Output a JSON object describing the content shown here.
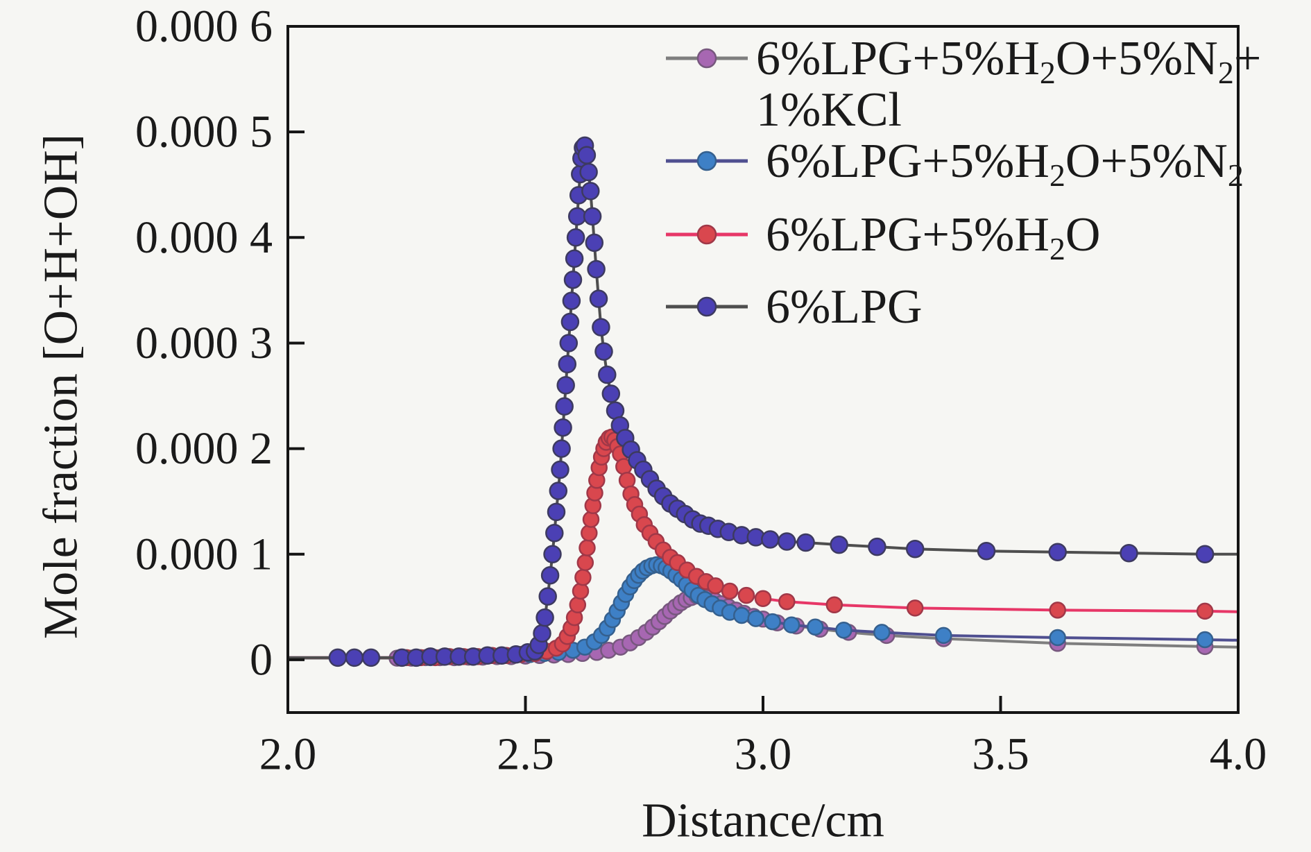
{
  "figure": {
    "background": "#f6f6f3",
    "axis_color": "#141414"
  },
  "chart_data": {
    "type": "line",
    "title": "",
    "xlabel": "Distance/cm",
    "ylabel": "Mole fraction [O+H+OH]",
    "xlim": [
      2.0,
      4.0
    ],
    "ylim": [
      -5e-05,
      0.0006
    ],
    "grid": false,
    "legend_position": "top-right-inside",
    "x_ticks": [
      {
        "value": 2.0,
        "label": "2.0"
      },
      {
        "value": 2.5,
        "label": "2.5"
      },
      {
        "value": 3.0,
        "label": "3.0"
      },
      {
        "value": 3.5,
        "label": "3.5"
      },
      {
        "value": 4.0,
        "label": "4.0"
      }
    ],
    "y_ticks": [
      {
        "value": 0,
        "label": "0"
      },
      {
        "value": 0.0001,
        "label": "0.000 1"
      },
      {
        "value": 0.0002,
        "label": "0.000 2"
      },
      {
        "value": 0.0003,
        "label": "0.000 3"
      },
      {
        "value": 0.0004,
        "label": "0.000 4"
      },
      {
        "value": 0.0005,
        "label": "0.000 5"
      },
      {
        "value": 0.0006,
        "label": "0.000 6"
      }
    ],
    "series": [
      {
        "id": "lpg-h2o-n2-kcl",
        "label_text": "6%LPG+5%H2O+5%N2+1%KCl",
        "label_segments": [
          {
            "t": "6%LPG+5%H"
          },
          {
            "t": "2",
            "sub": true
          },
          {
            "t": "O+5%N"
          },
          {
            "t": "2",
            "sub": true
          },
          {
            "t": "+"
          }
        ],
        "label_line2_segments": [
          {
            "t": "1%KCl"
          }
        ],
        "line_color": "#7e7e7e",
        "marker_color": "#a767b2",
        "marker_edge": "#77587e",
        "marker_radius": 11,
        "peak": {
          "x": 2.86,
          "y": 6.05e-05
        },
        "line_prefix": [
          2.0,
          1.5e-06
        ],
        "line_suffix": [
          4.0,
          1.2e-05
        ],
        "points": [
          [
            2.23,
            1.5e-06
          ],
          [
            2.26,
            1.5e-06
          ],
          [
            2.29,
            2e-06
          ],
          [
            2.32,
            2e-06
          ],
          [
            2.35,
            2e-06
          ],
          [
            2.38,
            2.5e-06
          ],
          [
            2.41,
            2.5e-06
          ],
          [
            2.44,
            3e-06
          ],
          [
            2.47,
            3e-06
          ],
          [
            2.5,
            3.5e-06
          ],
          [
            2.53,
            4e-06
          ],
          [
            2.56,
            4.5e-06
          ],
          [
            2.59,
            5e-06
          ],
          [
            2.62,
            6e-06
          ],
          [
            2.65,
            7e-06
          ],
          [
            2.675,
            9e-06
          ],
          [
            2.7,
            1.2e-05
          ],
          [
            2.72,
            1.6e-05
          ],
          [
            2.738,
            2.1e-05
          ],
          [
            2.754,
            2.6e-05
          ],
          [
            2.768,
            3.1e-05
          ],
          [
            2.781,
            3.6e-05
          ],
          [
            2.793,
            4.1e-05
          ],
          [
            2.805,
            4.6e-05
          ],
          [
            2.816,
            5e-05
          ],
          [
            2.827,
            5.4e-05
          ],
          [
            2.838,
            5.7e-05
          ],
          [
            2.849,
            5.9e-05
          ],
          [
            2.861,
            6.05e-05
          ],
          [
            2.873,
            6e-05
          ],
          [
            2.885,
            5.85e-05
          ],
          [
            2.898,
            5.6e-05
          ],
          [
            2.912,
            5.3e-05
          ],
          [
            2.927,
            5e-05
          ],
          [
            2.943,
            4.7e-05
          ],
          [
            2.96,
            4.4e-05
          ],
          [
            2.98,
            4.1e-05
          ],
          [
            3.0,
            3.85e-05
          ],
          [
            3.03,
            3.5e-05
          ],
          [
            3.07,
            3.2e-05
          ],
          [
            3.12,
            2.9e-05
          ],
          [
            3.18,
            2.6e-05
          ],
          [
            3.26,
            2.3e-05
          ],
          [
            3.38,
            2e-05
          ],
          [
            3.62,
            1.55e-05
          ],
          [
            3.93,
            1.25e-05
          ]
        ]
      },
      {
        "id": "lpg-h2o-n2",
        "label_text": "6%LPG+5%H2O+5%N2",
        "label_segments": [
          {
            "t": "6%LPG+5%H"
          },
          {
            "t": "2",
            "sub": true
          },
          {
            "t": "O+5%N"
          },
          {
            "t": "2",
            "sub": true
          }
        ],
        "line_color": "#4f4f90",
        "marker_color": "#3e80c6",
        "marker_edge": "#35608e",
        "marker_radius": 11,
        "peak": {
          "x": 2.776,
          "y": 9e-05
        },
        "line_prefix": [
          2.0,
          2e-06
        ],
        "line_suffix": [
          4.0,
          1.85e-05
        ],
        "points": [
          [
            2.24,
            2e-06
          ],
          [
            2.27,
            2e-06
          ],
          [
            2.3,
            2e-06
          ],
          [
            2.33,
            3e-06
          ],
          [
            2.36,
            3e-06
          ],
          [
            2.39,
            3e-06
          ],
          [
            2.42,
            4e-06
          ],
          [
            2.45,
            4e-06
          ],
          [
            2.48,
            5e-06
          ],
          [
            2.51,
            5e-06
          ],
          [
            2.54,
            6e-06
          ],
          [
            2.57,
            7e-06
          ],
          [
            2.6,
            9e-06
          ],
          [
            2.625,
            1.2e-05
          ],
          [
            2.645,
            1.7e-05
          ],
          [
            2.66,
            2.3e-05
          ],
          [
            2.672,
            3e-05
          ],
          [
            2.683,
            3.8e-05
          ],
          [
            2.693,
            4.6e-05
          ],
          [
            2.702,
            5.4e-05
          ],
          [
            2.711,
            6.2e-05
          ],
          [
            2.72,
            6.9e-05
          ],
          [
            2.729,
            7.5e-05
          ],
          [
            2.738,
            8e-05
          ],
          [
            2.747,
            8.4e-05
          ],
          [
            2.756,
            8.7e-05
          ],
          [
            2.766,
            8.9e-05
          ],
          [
            2.776,
            9e-05
          ],
          [
            2.786,
            8.9e-05
          ],
          [
            2.796,
            8.7e-05
          ],
          [
            2.806,
            8.4e-05
          ],
          [
            2.817,
            8e-05
          ],
          [
            2.828,
            7.6e-05
          ],
          [
            2.839,
            7.1e-05
          ],
          [
            2.851,
            6.6e-05
          ],
          [
            2.864,
            6.1e-05
          ],
          [
            2.878,
            5.7e-05
          ],
          [
            2.893,
            5.3e-05
          ],
          [
            2.91,
            4.9e-05
          ],
          [
            2.93,
            4.5e-05
          ],
          [
            2.955,
            4.2e-05
          ],
          [
            2.985,
            3.9e-05
          ],
          [
            3.02,
            3.6e-05
          ],
          [
            3.06,
            3.3e-05
          ],
          [
            3.11,
            3.1e-05
          ],
          [
            3.17,
            2.8e-05
          ],
          [
            3.25,
            2.6e-05
          ],
          [
            3.38,
            2.3e-05
          ],
          [
            3.62,
            2.1e-05
          ],
          [
            3.93,
            1.9e-05
          ]
        ]
      },
      {
        "id": "lpg-h2o",
        "label_text": "6%LPG+5%H2O",
        "label_segments": [
          {
            "t": "6%LPG+5%H"
          },
          {
            "t": "2",
            "sub": true
          },
          {
            "t": "O"
          }
        ],
        "line_color": "#e73767",
        "marker_color": "#d9474e",
        "marker_edge": "#a03848",
        "marker_radius": 11,
        "peak": {
          "x": 2.682,
          "y": 0.000211
        },
        "line_prefix": [
          2.0,
          2e-06
        ],
        "line_suffix": [
          4.0,
          4.55e-05
        ],
        "points": [
          [
            2.25,
            2e-06
          ],
          [
            2.28,
            2e-06
          ],
          [
            2.31,
            2e-06
          ],
          [
            2.34,
            3e-06
          ],
          [
            2.37,
            3e-06
          ],
          [
            2.4,
            3e-06
          ],
          [
            2.43,
            4e-06
          ],
          [
            2.46,
            4e-06
          ],
          [
            2.49,
            5e-06
          ],
          [
            2.52,
            6e-06
          ],
          [
            2.545,
            8e-06
          ],
          [
            2.565,
            1.1e-05
          ],
          [
            2.578,
            1.5e-05
          ],
          [
            2.588,
            2.2e-05
          ],
          [
            2.596,
            3e-05
          ],
          [
            2.603,
            4e-05
          ],
          [
            2.61,
            5.2e-05
          ],
          [
            2.616,
            6.5e-05
          ],
          [
            2.621,
            7.8e-05
          ],
          [
            2.626,
            9.2e-05
          ],
          [
            2.63,
            0.000106
          ],
          [
            2.634,
            0.00012
          ],
          [
            2.638,
            0.000133
          ],
          [
            2.642,
            0.000146
          ],
          [
            2.646,
            0.000158
          ],
          [
            2.65,
            0.00017
          ],
          [
            2.655,
            0.000182
          ],
          [
            2.66,
            0.000192
          ],
          [
            2.665,
            0.0002
          ],
          [
            2.67,
            0.000206
          ],
          [
            2.676,
            0.00021
          ],
          [
            2.682,
            0.000211
          ],
          [
            2.688,
            0.000208
          ],
          [
            2.694,
            0.000202
          ],
          [
            2.7,
            0.000195
          ],
          [
            2.707,
            0.000183
          ],
          [
            2.714,
            0.00017
          ],
          [
            2.722,
            0.000157
          ],
          [
            2.73,
            0.000147
          ],
          [
            2.74,
            0.000138
          ],
          [
            2.75,
            0.000128
          ],
          [
            2.762,
            0.00012
          ],
          [
            2.775,
            0.000112
          ],
          [
            2.79,
            0.000104
          ],
          [
            2.805,
            9.7e-05
          ],
          [
            2.82,
            9.2e-05
          ],
          [
            2.84,
            8.5e-05
          ],
          [
            2.86,
            7.9e-05
          ],
          [
            2.88,
            7.4e-05
          ],
          [
            2.9,
            7e-05
          ],
          [
            2.93,
            6.5e-05
          ],
          [
            2.965,
            6.1e-05
          ],
          [
            3.0,
            5.8e-05
          ],
          [
            3.05,
            5.5e-05
          ],
          [
            3.15,
            5.2e-05
          ],
          [
            3.32,
            4.9e-05
          ],
          [
            3.62,
            4.7e-05
          ],
          [
            3.93,
            4.6e-05
          ]
        ]
      },
      {
        "id": "lpg",
        "label_text": "6%LPG",
        "label_segments": [
          {
            "t": "6%LPG"
          }
        ],
        "line_color": "#4e4e4e",
        "marker_color": "#4b40b4",
        "marker_edge": "#3d3a60",
        "marker_radius": 12,
        "peak": {
          "x": 2.625,
          "y": 0.000487
        },
        "line_prefix": [
          2.0,
          2e-06
        ],
        "line_suffix": [
          4.0,
          0.0001
        ],
        "points": [
          [
            2.105,
            2e-06
          ],
          [
            2.14,
            2e-06
          ],
          [
            2.175,
            2e-06
          ],
          [
            2.24,
            2e-06
          ],
          [
            2.27,
            2e-06
          ],
          [
            2.3,
            3e-06
          ],
          [
            2.33,
            3e-06
          ],
          [
            2.36,
            3e-06
          ],
          [
            2.39,
            3e-06
          ],
          [
            2.42,
            4e-06
          ],
          [
            2.45,
            4e-06
          ],
          [
            2.48,
            5e-06
          ],
          [
            2.505,
            7e-06
          ],
          [
            2.52,
            8e-06
          ],
          [
            2.528,
            1.4e-05
          ],
          [
            2.535,
            2.5e-05
          ],
          [
            2.541,
            4e-05
          ],
          [
            2.547,
            6e-05
          ],
          [
            2.552,
            8e-05
          ],
          [
            2.557,
            0.0001
          ],
          [
            2.561,
            0.00012
          ],
          [
            2.565,
            0.00014
          ],
          [
            2.569,
            0.00016
          ],
          [
            2.573,
            0.00018
          ],
          [
            2.576,
            0.0002
          ],
          [
            2.579,
            0.00022
          ],
          [
            2.582,
            0.00024
          ],
          [
            2.585,
            0.00026
          ],
          [
            2.588,
            0.00028
          ],
          [
            2.591,
            0.0003
          ],
          [
            2.594,
            0.00032
          ],
          [
            2.597,
            0.00034
          ],
          [
            2.6,
            0.00036
          ],
          [
            2.603,
            0.00038
          ],
          [
            2.606,
            0.0004
          ],
          [
            2.609,
            0.00042
          ],
          [
            2.612,
            0.00044
          ],
          [
            2.615,
            0.00046
          ],
          [
            2.618,
            0.000475
          ],
          [
            2.621,
            0.000485
          ],
          [
            2.625,
            0.000487
          ],
          [
            2.629,
            0.000478
          ],
          [
            2.633,
            0.000462
          ],
          [
            2.637,
            0.000444
          ],
          [
            2.641,
            0.00042
          ],
          [
            2.645,
            0.000395
          ],
          [
            2.649,
            0.00037
          ],
          [
            2.654,
            0.000342
          ],
          [
            2.659,
            0.000315
          ],
          [
            2.665,
            0.000292
          ],
          [
            2.672,
            0.00027
          ],
          [
            2.68,
            0.000252
          ],
          [
            2.689,
            0.000236
          ],
          [
            2.699,
            0.000222
          ],
          [
            2.71,
            0.00021
          ],
          [
            2.722,
            0.000199
          ],
          [
            2.735,
            0.000189
          ],
          [
            2.748,
            0.00018
          ],
          [
            2.762,
            0.000171
          ],
          [
            2.776,
            0.000162
          ],
          [
            2.79,
            0.000155
          ],
          [
            2.805,
            0.000148
          ],
          [
            2.82,
            0.000143
          ],
          [
            2.836,
            0.000138
          ],
          [
            2.852,
            0.000133
          ],
          [
            2.868,
            0.000129
          ],
          [
            2.885,
            0.000127
          ],
          [
            2.905,
            0.000124
          ],
          [
            2.928,
            0.000121
          ],
          [
            2.955,
            0.000118
          ],
          [
            2.985,
            0.000116
          ],
          [
            3.015,
            0.000114
          ],
          [
            3.05,
            0.000112
          ],
          [
            3.09,
            0.000111
          ],
          [
            3.16,
            0.000109
          ],
          [
            3.24,
            0.000107
          ],
          [
            3.32,
            0.000105
          ],
          [
            3.47,
            0.000103
          ],
          [
            3.62,
            0.000102
          ],
          [
            3.77,
            0.000101
          ],
          [
            3.93,
            0.0001
          ]
        ]
      }
    ]
  }
}
